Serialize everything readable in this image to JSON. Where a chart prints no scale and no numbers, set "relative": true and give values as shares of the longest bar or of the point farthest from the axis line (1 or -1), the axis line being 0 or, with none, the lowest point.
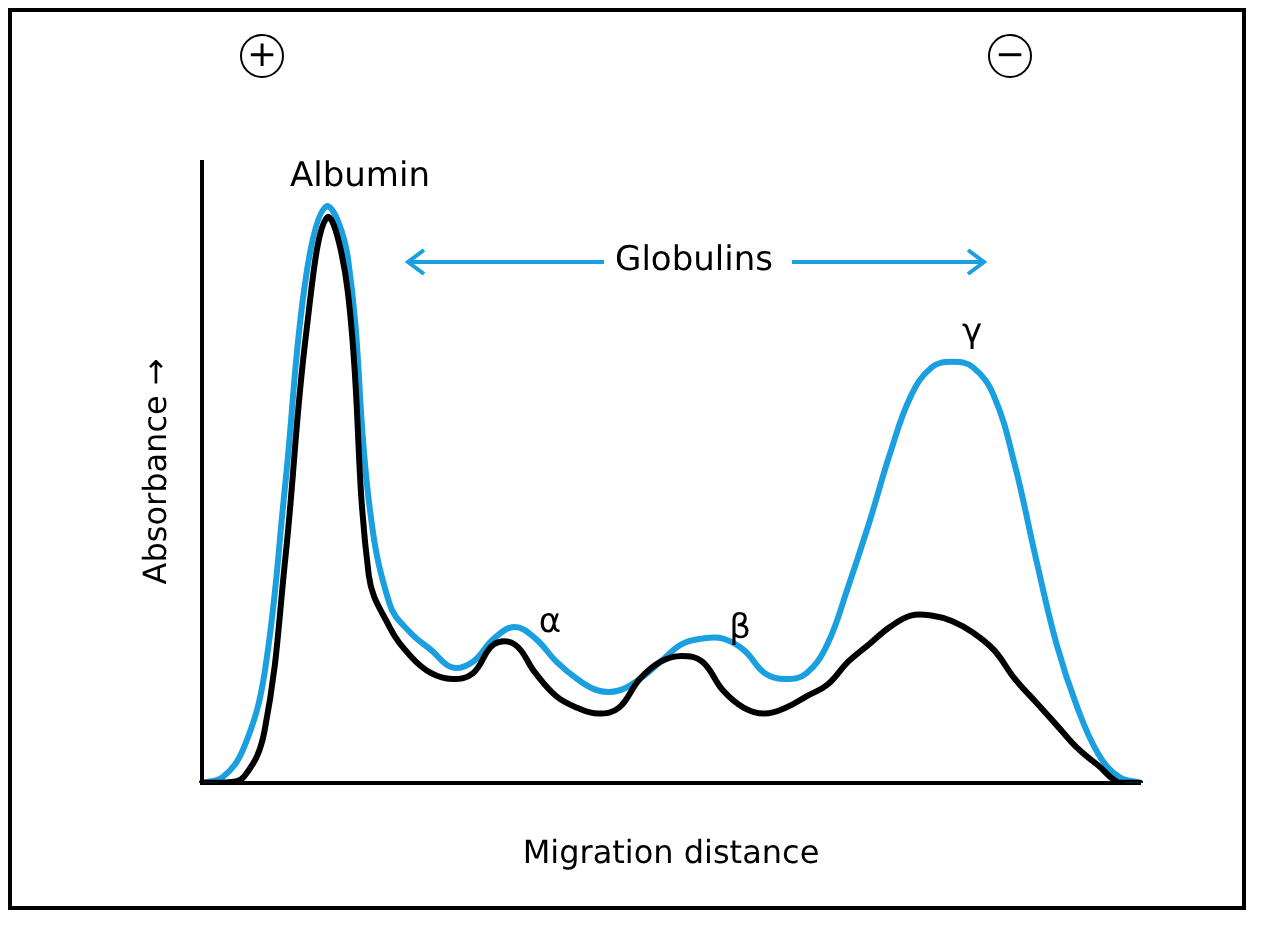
{
  "chart_data": {
    "type": "line",
    "relative": true,
    "xlabel": "Migration distance",
    "ylabel": "Absorbance →",
    "marker": "none",
    "legend": false,
    "grid": false,
    "categories": [
      null,
      null,
      null,
      null,
      null,
      null,
      null,
      null,
      null,
      null,
      null,
      null,
      null,
      null,
      null,
      null,
      null,
      null,
      null,
      null,
      null,
      null,
      null,
      null,
      null,
      null,
      null,
      null,
      null,
      null,
      null,
      null,
      null,
      null,
      null,
      null,
      null,
      null,
      null,
      null,
      null,
      null,
      null,
      null,
      null,
      null
    ],
    "series": [
      {
        "color": "#1a9fe0",
        "values": [
          0,
          0.01,
          0.06,
          0.19,
          0.52,
          0.88,
          1,
          0.91,
          0.49,
          0.31,
          0.26,
          0.23,
          0.2,
          0.21,
          0.25,
          0.27,
          0.25,
          0.21,
          0.18,
          0.16,
          0.16,
          0.18,
          0.21,
          0.24,
          0.25,
          0.25,
          0.23,
          0.19,
          0.18,
          0.19,
          0.24,
          0.34,
          0.45,
          0.57,
          0.67,
          0.72,
          0.73,
          0.72,
          0.67,
          0.55,
          0.39,
          0.24,
          0.13,
          0.05,
          0.01,
          0
        ]
      },
      {
        "color": "#000000",
        "values": [
          0,
          0,
          0.01,
          0.09,
          0.39,
          0.78,
          0.98,
          0.85,
          0.36,
          0.27,
          0.22,
          0.19,
          0.18,
          0.19,
          0.24,
          0.24,
          0.19,
          0.15,
          0.13,
          0.12,
          0.13,
          0.18,
          0.21,
          0.22,
          0.21,
          0.16,
          0.13,
          0.12,
          0.13,
          0.15,
          0.17,
          0.21,
          0.24,
          0.27,
          0.29,
          0.29,
          0.28,
          0.26,
          0.23,
          0.18,
          0.14,
          0.1,
          0.06,
          0.03,
          0,
          0
        ]
      }
    ],
    "annotations": [
      "+",
      "−",
      "Albumin",
      "Globulins",
      "α",
      "β",
      "γ"
    ]
  }
}
